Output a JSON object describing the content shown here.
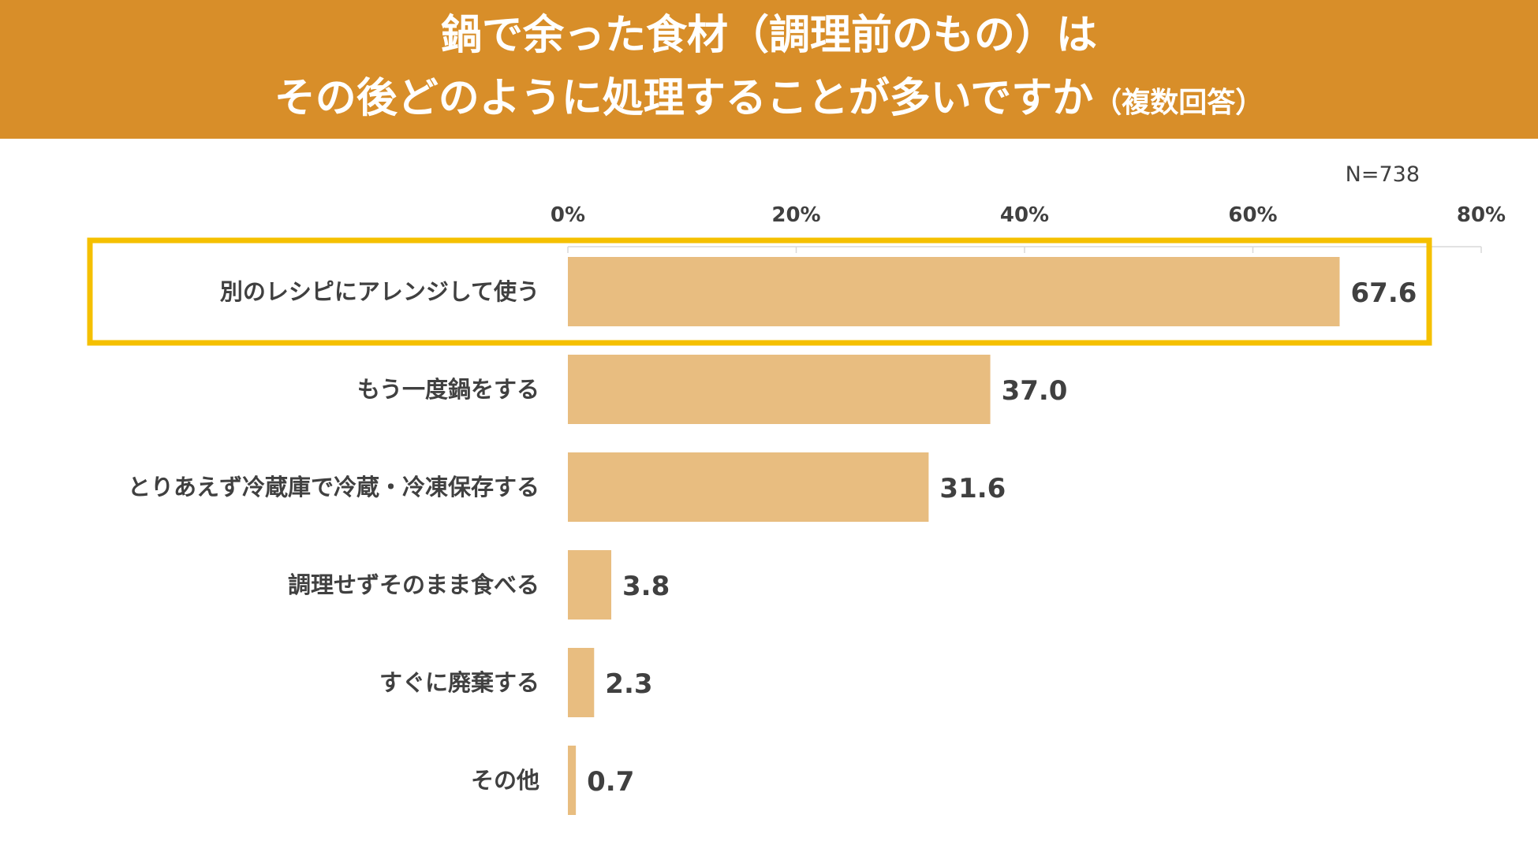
{
  "header": {
    "title_line1": "鍋で余った食材（調理前のもの）は",
    "title_line2": "その後どのように処理することが多いですか",
    "title_note": "（複数回答）"
  },
  "sample_size": "N=738",
  "colors": {
    "header_bg": "#d88e29",
    "bar": "#e8bd80",
    "highlight_border": "#f5c000",
    "text": "#404040"
  },
  "chart_data": {
    "type": "bar",
    "orientation": "horizontal",
    "title": "鍋で余った食材（調理前のもの）はその後どのように処理することが多いですか（複数回答）",
    "categories": [
      "別のレシピにアレンジして使う",
      "もう一度鍋をする",
      "とりあえず冷蔵庫で冷蔵・冷凍保存する",
      "調理せずそのまま食べる",
      "すぐに廃棄する",
      "その他"
    ],
    "values": [
      67.6,
      37.0,
      31.6,
      3.8,
      2.3,
      0.7
    ],
    "value_labels": [
      "67.6",
      "37.0",
      "31.6",
      "3.8",
      "2.3",
      "0.7"
    ],
    "xlim": [
      0,
      80
    ],
    "ticks": [
      0,
      20,
      40,
      60,
      80
    ],
    "tick_labels": [
      "0%",
      "20%",
      "40%",
      "60%",
      "80%"
    ],
    "unit": "%",
    "highlighted_index": 0
  }
}
